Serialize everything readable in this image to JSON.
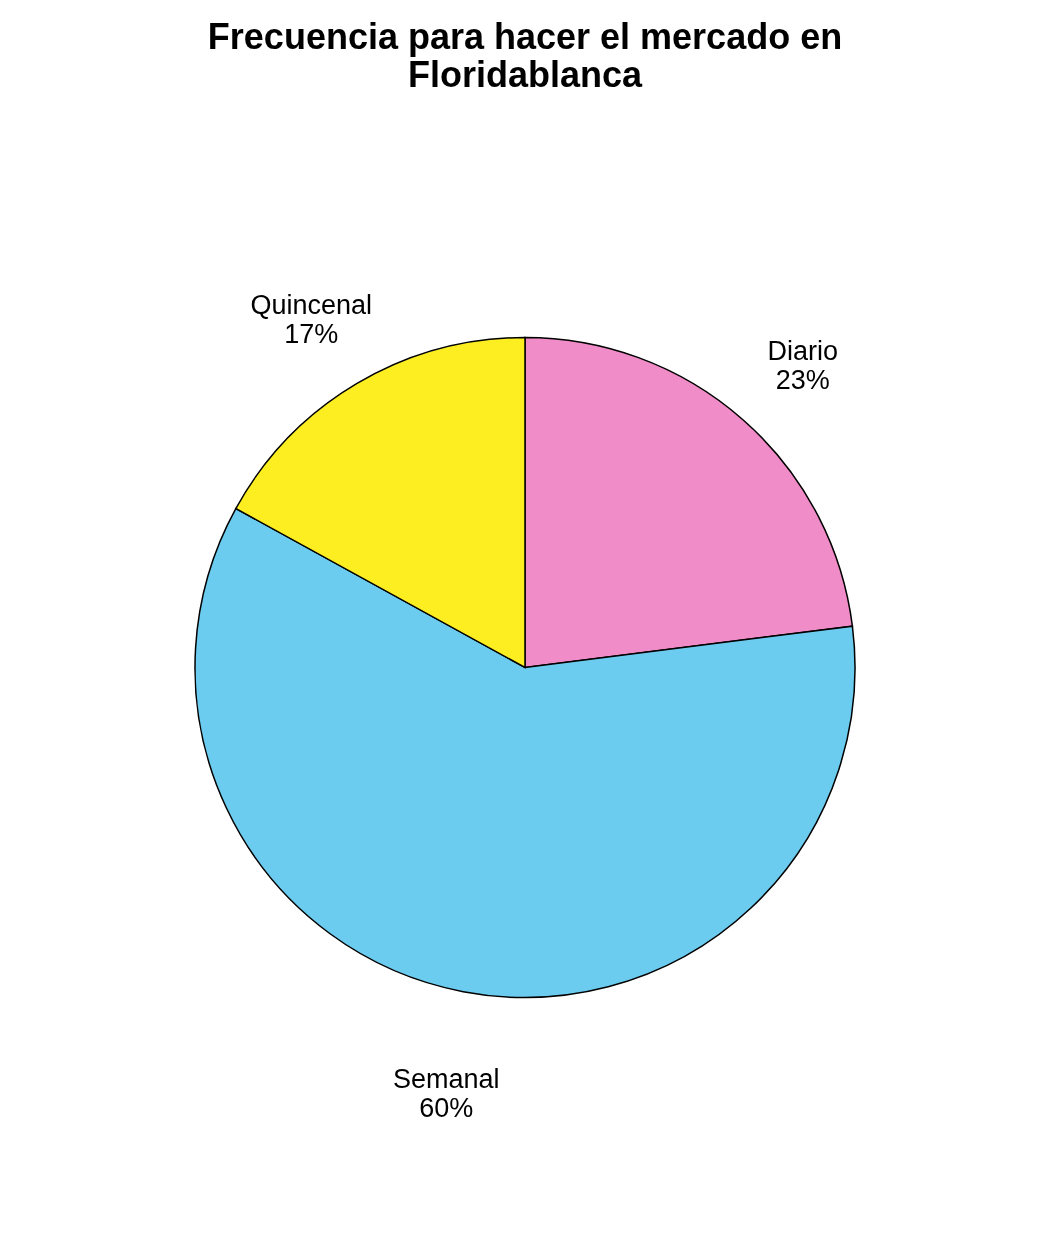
{
  "chart_data": {
    "type": "pie",
    "title": "Frecuencia para hacer el mercado en Floridablanca",
    "categories": [
      "Diario",
      "Semanal",
      "Quincenal"
    ],
    "values": [
      23,
      60,
      17
    ],
    "value_labels": [
      "23%",
      "60%",
      "17%"
    ],
    "colors": [
      "#f08cc8",
      "#6cccf0",
      "#fcee21"
    ],
    "legend": false
  }
}
